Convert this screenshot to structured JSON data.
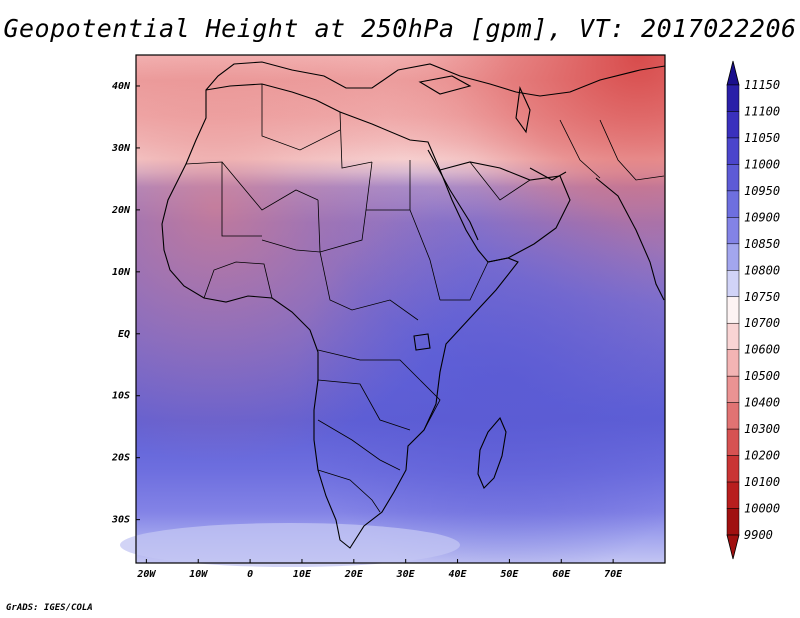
{
  "title": "Geopotential Height at 250hPa [gpm], VT: 2017022206",
  "credit": "GrADS: IGES/COLA",
  "map": {
    "lon_range": [
      -22,
      80
    ],
    "lat_range": [
      -37,
      45
    ],
    "x_ticks": [
      "20W",
      "10W",
      "0",
      "10E",
      "20E",
      "30E",
      "40E",
      "50E",
      "60E",
      "70E"
    ],
    "y_ticks": [
      "40N",
      "30N",
      "20N",
      "10N",
      "EQ",
      "10S",
      "20S",
      "30S"
    ]
  },
  "colorbar": {
    "levels": [
      "11150",
      "11100",
      "11050",
      "11000",
      "10950",
      "10900",
      "10850",
      "10800",
      "10750",
      "10700",
      "10600",
      "10500",
      "10400",
      "10300",
      "10200",
      "10100",
      "10000",
      "9900"
    ],
    "colors": [
      "#1a0f8c",
      "#2a1fa8",
      "#3a30bd",
      "#4b45cc",
      "#5d5bd6",
      "#6e6fdf",
      "#8383e6",
      "#a3a6ee",
      "#d1d3f7",
      "#fdf3f3",
      "#f9d4d4",
      "#f3b4b4",
      "#eb9393",
      "#e17373",
      "#d65252",
      "#c93434",
      "#b81e1e",
      "#a01010"
    ]
  }
}
